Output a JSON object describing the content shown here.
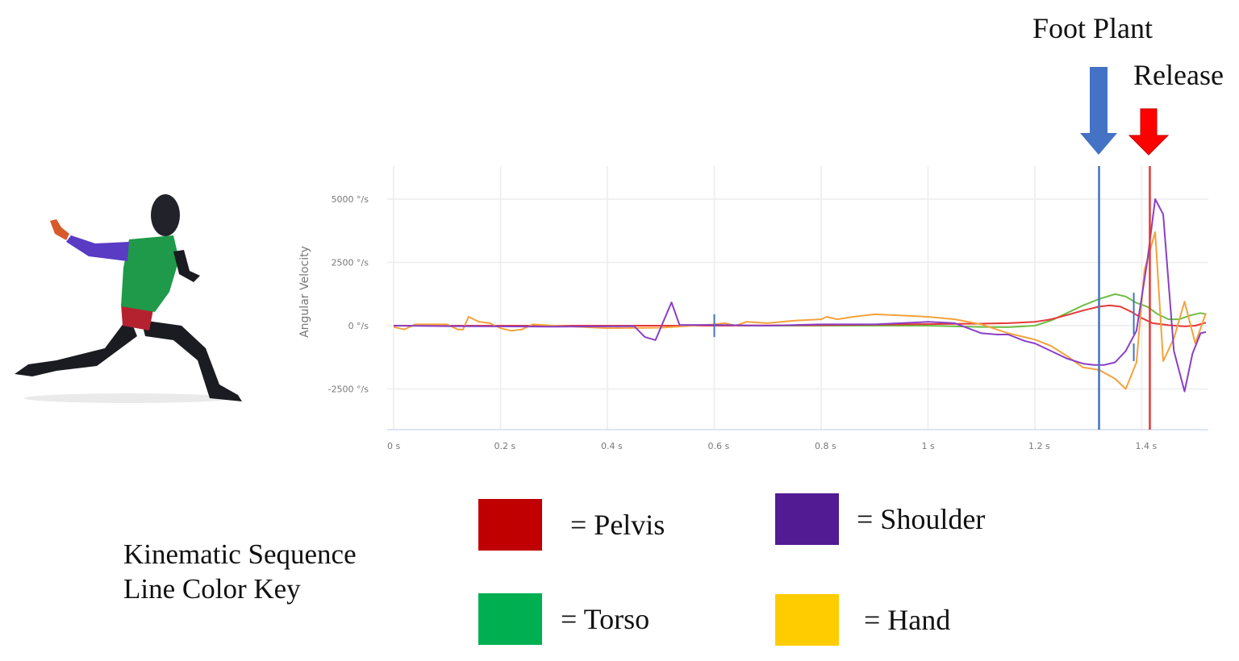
{
  "annotations": {
    "foot_plant": {
      "label": "Foot Plant",
      "time": 1.32,
      "color": "#4472C4"
    },
    "release": {
      "label": "Release",
      "time": 1.415,
      "color": "#FF0000"
    }
  },
  "key": {
    "title_line1": "Kinematic Sequence",
    "title_line2": "Line Color Key",
    "items": [
      {
        "label": "= Pelvis",
        "color": "#C00000"
      },
      {
        "label": "= Shoulder",
        "color": "#521B93"
      },
      {
        "label": "= Torso",
        "color": "#00B050"
      },
      {
        "label": "= Hand",
        "color": "#FFCC00"
      }
    ]
  },
  "figure": {
    "description": "3D human figure in pitching stride pose with colored body segments",
    "segments": [
      "pelvis-red",
      "torso-green",
      "upper-arm-purple",
      "hand-orange"
    ]
  },
  "chart_data": {
    "type": "line",
    "title": "",
    "xlabel": "",
    "ylabel": "Angular Velocity",
    "xlim": [
      0,
      1.52
    ],
    "ylim": [
      -4200,
      6300
    ],
    "x_ticks": [
      "0 s",
      "0.2 s",
      "0.4 s",
      "0.6 s",
      "0.8 s",
      "1 s",
      "1.2 s",
      "1.4 s"
    ],
    "x_tick_values": [
      0,
      0.2,
      0.4,
      0.6,
      0.8,
      1.0,
      1.2,
      1.4
    ],
    "y_ticks": [
      "5000 °/s",
      "2500 °/s",
      "0 °/s",
      "-2500 °/s"
    ],
    "y_tick_values": [
      5000,
      2500,
      0,
      -2500
    ],
    "grid": true,
    "vertical_markers": [
      {
        "name": "Foot Plant",
        "x": 1.32,
        "color": "#4472C4"
      },
      {
        "name": "Release",
        "x": 1.415,
        "color": "#E53935"
      }
    ],
    "event_ticks": [
      {
        "x": 0.6,
        "y_range": [
          -450,
          450
        ],
        "color": "#4472C4"
      },
      {
        "x": 1.385,
        "y_range": [
          -1400,
          1300
        ],
        "color": "#4472C4"
      }
    ],
    "series": [
      {
        "name": "Pelvis",
        "color": "#E53935",
        "x": [
          0,
          0.2,
          0.4,
          0.6,
          0.8,
          0.9,
          1.0,
          1.05,
          1.1,
          1.15,
          1.2,
          1.23,
          1.26,
          1.29,
          1.32,
          1.34,
          1.36,
          1.38,
          1.4,
          1.42,
          1.45,
          1.48,
          1.5,
          1.52
        ],
        "y": [
          0,
          0,
          0,
          0,
          20,
          40,
          60,
          70,
          80,
          100,
          150,
          250,
          420,
          600,
          750,
          800,
          750,
          550,
          300,
          100,
          20,
          -30,
          0,
          120
        ]
      },
      {
        "name": "Torso",
        "color": "#6DBE45",
        "x": [
          0,
          0.2,
          0.4,
          0.6,
          0.8,
          1.0,
          1.1,
          1.15,
          1.2,
          1.23,
          1.26,
          1.29,
          1.32,
          1.35,
          1.37,
          1.39,
          1.41,
          1.43,
          1.45,
          1.47,
          1.49,
          1.51,
          1.52
        ],
        "y": [
          0,
          0,
          0,
          0,
          0,
          0,
          -50,
          -60,
          0,
          200,
          500,
          800,
          1050,
          1250,
          1150,
          900,
          750,
          450,
          250,
          250,
          400,
          500,
          450
        ]
      },
      {
        "name": "Shoulder",
        "color": "#8A3FC7",
        "x": [
          0,
          0.1,
          0.2,
          0.3,
          0.4,
          0.45,
          0.47,
          0.49,
          0.52,
          0.535,
          0.6,
          0.7,
          0.8,
          0.9,
          1.0,
          1.05,
          1.1,
          1.13,
          1.15,
          1.18,
          1.2,
          1.23,
          1.26,
          1.29,
          1.31,
          1.33,
          1.35,
          1.37,
          1.39,
          1.41,
          1.425,
          1.44,
          1.46,
          1.48,
          1.495,
          1.51,
          1.52
        ],
        "y": [
          0,
          -20,
          -30,
          -40,
          -30,
          -20,
          -450,
          -570,
          920,
          30,
          30,
          0,
          50,
          50,
          150,
          100,
          -300,
          -350,
          -350,
          -600,
          -700,
          -1000,
          -1300,
          -1500,
          -1550,
          -1550,
          -1450,
          -1000,
          -200,
          2500,
          5000,
          4400,
          -1000,
          -2600,
          -1100,
          -300,
          -250
        ]
      },
      {
        "name": "Hand",
        "color": "#F4A23C",
        "x": [
          0,
          0.02,
          0.04,
          0.06,
          0.08,
          0.1,
          0.12,
          0.13,
          0.14,
          0.16,
          0.18,
          0.2,
          0.22,
          0.24,
          0.26,
          0.3,
          0.4,
          0.5,
          0.6,
          0.62,
          0.64,
          0.66,
          0.7,
          0.75,
          0.8,
          0.81,
          0.83,
          0.86,
          0.9,
          0.95,
          1.0,
          1.05,
          1.1,
          1.15,
          1.2,
          1.23,
          1.26,
          1.29,
          1.32,
          1.35,
          1.37,
          1.39,
          1.405,
          1.425,
          1.44,
          1.46,
          1.48,
          1.5,
          1.52
        ],
        "y": [
          -50,
          -150,
          50,
          50,
          50,
          50,
          -150,
          -150,
          350,
          150,
          100,
          -100,
          -200,
          -150,
          50,
          0,
          -100,
          -80,
          50,
          100,
          0,
          150,
          100,
          200,
          250,
          350,
          250,
          350,
          450,
          400,
          350,
          250,
          50,
          -300,
          -550,
          -800,
          -1200,
          -1650,
          -1750,
          -2100,
          -2500,
          -1450,
          2200,
          3700,
          -1400,
          -500,
          950,
          -700,
          500
        ]
      }
    ]
  }
}
